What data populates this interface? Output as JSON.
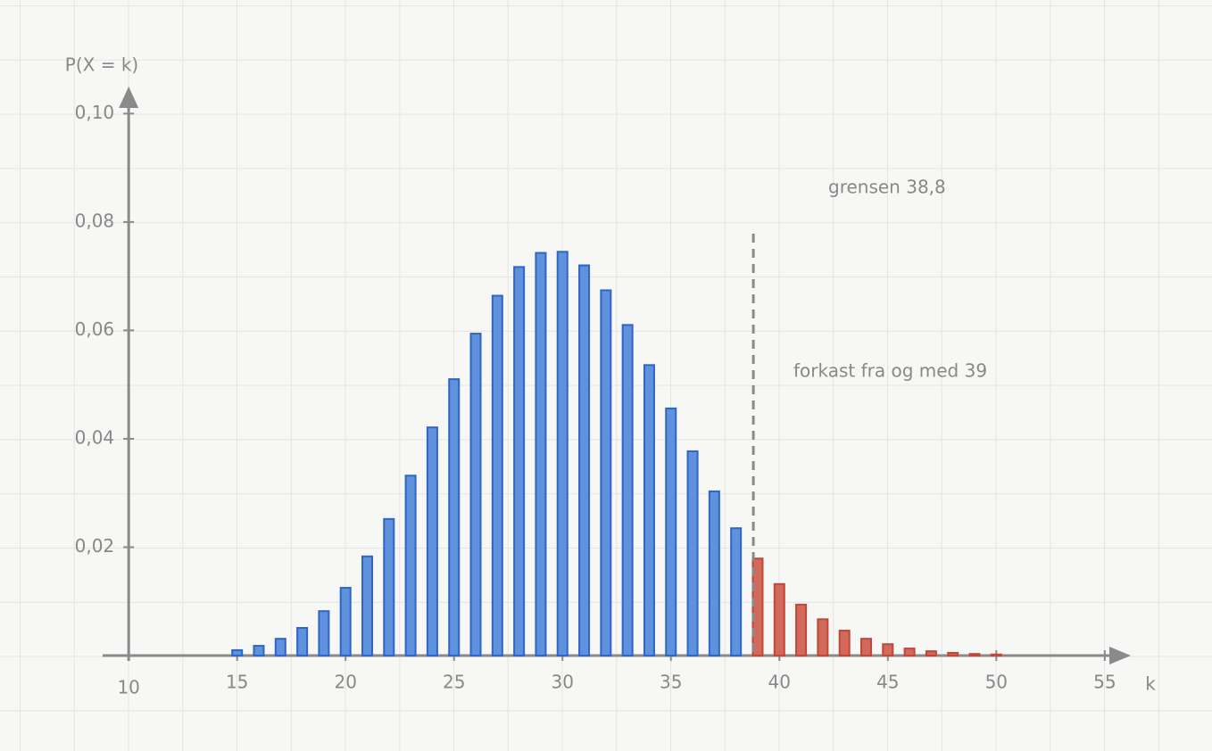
{
  "chart_data": {
    "type": "bar",
    "x_label": "k",
    "y_label": "P(X = k)",
    "xlim": [
      8.8,
      56.2
    ],
    "ylim": [
      0,
      0.105
    ],
    "xticks": [
      10,
      15,
      20,
      25,
      30,
      35,
      40,
      45,
      50,
      55
    ],
    "yticks": [
      {
        "value": 0.02,
        "label": "0,02"
      },
      {
        "value": 0.04,
        "label": "0,04"
      },
      {
        "value": 0.06,
        "label": "0,06"
      },
      {
        "value": 0.08,
        "label": "0,08"
      },
      {
        "value": 0.1,
        "label": "0,10"
      }
    ],
    "series": [
      {
        "color": "#5f91dd",
        "x": [
          15,
          16,
          17,
          18,
          19,
          20,
          21,
          22,
          23,
          24,
          25,
          26,
          27,
          28,
          29,
          30,
          31,
          32,
          33,
          34,
          35,
          36,
          37,
          38
        ],
        "values": [
          0.001,
          0.0018,
          0.0031,
          0.0051,
          0.0082,
          0.0125,
          0.0183,
          0.0252,
          0.0332,
          0.0421,
          0.051,
          0.0594,
          0.0664,
          0.0717,
          0.0743,
          0.0745,
          0.072,
          0.0674,
          0.061,
          0.0536,
          0.0456,
          0.0377,
          0.0303,
          0.0235
        ]
      },
      {
        "color": "#d16a5b",
        "x": [
          39,
          40,
          41,
          42,
          43,
          44,
          45,
          46,
          47,
          48,
          49,
          50
        ],
        "values": [
          0.0179,
          0.0132,
          0.0094,
          0.0067,
          0.0046,
          0.0031,
          0.0021,
          0.0013,
          0.0008,
          0.0005,
          0.0003,
          0.0002
        ]
      }
    ],
    "threshold": 38.8,
    "annotations": [
      {
        "text": "grensen 38,8",
        "color": "#111111"
      },
      {
        "text": "forkast fra og med 39",
        "color": "#c9493b"
      }
    ]
  }
}
